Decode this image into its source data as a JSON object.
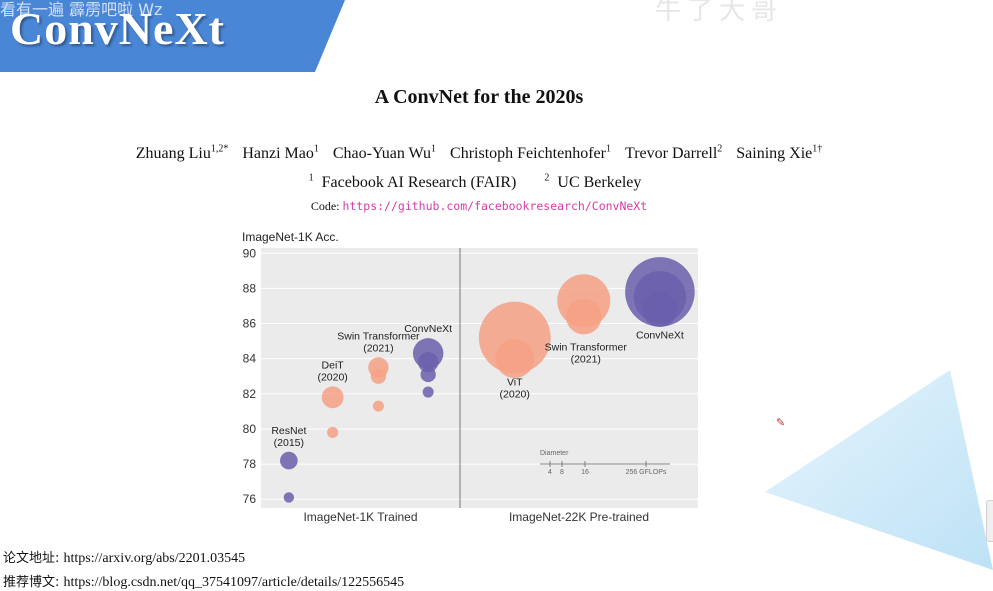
{
  "banner": {
    "title": "ConvNeXt",
    "overlay_text": "看有一遍 霹雳吧啦 Wz"
  },
  "watermark": "牛了大哥",
  "paper": {
    "title": "A ConvNet for the 2020s",
    "authors": [
      {
        "name": "Zhuang Liu",
        "sup": "1,2*"
      },
      {
        "name": "Hanzi Mao",
        "sup": "1"
      },
      {
        "name": "Chao-Yuan Wu",
        "sup": "1"
      },
      {
        "name": "Christoph Feichtenhofer",
        "sup": "1"
      },
      {
        "name": "Trevor Darrell",
        "sup": "2"
      },
      {
        "name": "Saining Xie",
        "sup": "1†"
      }
    ],
    "affiliations": [
      {
        "sup": "1",
        "name": "Facebook AI Research (FAIR)"
      },
      {
        "sup": "2",
        "name": "UC Berkeley"
      }
    ],
    "code_label": "Code:",
    "code_url": "https://github.com/facebookresearch/ConvNeXt"
  },
  "chart_data": {
    "type": "scatter",
    "ylabel": "ImageNet-1K Acc.",
    "ylim": [
      75.5,
      90.3
    ],
    "yticks": [
      76,
      78,
      80,
      82,
      84,
      86,
      88,
      90
    ],
    "panels": [
      {
        "label": "ImageNet-1K Trained"
      },
      {
        "label": "ImageNet-22K Pre-trained"
      }
    ],
    "colors": {
      "convnet": "#6a5fab",
      "transformer": "#f6a085"
    },
    "groups": [
      {
        "panel": 0,
        "name": "ResNet (2015)",
        "label_lines": [
          "ResNet",
          "(2015)"
        ],
        "color": "convnet",
        "points": [
          {
            "x": 0.14,
            "y": 76.1,
            "gflops": 4
          },
          {
            "x": 0.14,
            "y": 78.2,
            "gflops": 11.5
          }
        ]
      },
      {
        "panel": 0,
        "name": "DeiT (2020)",
        "label_lines": [
          "DeiT",
          "(2020)"
        ],
        "color": "transformer",
        "points": [
          {
            "x": 0.36,
            "y": 79.8,
            "gflops": 4.6
          },
          {
            "x": 0.36,
            "y": 81.8,
            "gflops": 17.6
          }
        ]
      },
      {
        "panel": 0,
        "name": "Swin Transformer (2021)",
        "label_lines": [
          "Swin Transformer",
          "(2021)"
        ],
        "color": "transformer",
        "points": [
          {
            "x": 0.59,
            "y": 81.3,
            "gflops": 4.5
          },
          {
            "x": 0.59,
            "y": 83.0,
            "gflops": 8.7
          },
          {
            "x": 0.59,
            "y": 83.5,
            "gflops": 15.4
          }
        ]
      },
      {
        "panel": 0,
        "name": "ConvNeXt",
        "label_lines": [
          "ConvNeXt"
        ],
        "color": "convnet",
        "points": [
          {
            "x": 0.84,
            "y": 82.1,
            "gflops": 4.5
          },
          {
            "x": 0.84,
            "y": 83.1,
            "gflops": 8.7
          },
          {
            "x": 0.84,
            "y": 83.8,
            "gflops": 15.4
          },
          {
            "x": 0.84,
            "y": 84.3,
            "gflops": 34.4
          }
        ]
      },
      {
        "panel": 1,
        "name": "ViT (2020)",
        "label_lines": [
          "ViT",
          "(2020)"
        ],
        "color": "transformer",
        "points": [
          {
            "x": 0.23,
            "y": 84.0,
            "gflops": 55.5
          },
          {
            "x": 0.23,
            "y": 85.2,
            "gflops": 191
          }
        ]
      },
      {
        "panel": 1,
        "name": "Swin Transformer (2021)",
        "label_lines": [
          "Swin Transformer",
          "(2021)"
        ],
        "color": "transformer",
        "points": [
          {
            "x": 0.52,
            "y": 86.4,
            "gflops": 47
          },
          {
            "x": 0.52,
            "y": 87.3,
            "gflops": 104
          }
        ]
      },
      {
        "panel": 1,
        "name": "ConvNeXt",
        "label_lines": [
          "ConvNeXt"
        ],
        "color": "convnet",
        "points": [
          {
            "x": 0.84,
            "y": 86.8,
            "gflops": 45
          },
          {
            "x": 0.84,
            "y": 87.5,
            "gflops": 101
          },
          {
            "x": 0.84,
            "y": 87.8,
            "gflops": 179
          }
        ]
      }
    ],
    "size_legend": {
      "title": "Diameter",
      "values": [
        4,
        8,
        16,
        256
      ],
      "unit_label": "256 GFLOPs"
    }
  },
  "footer": {
    "paper_label": "论文地址:",
    "paper_url": "https://arxiv.org/abs/2201.03545",
    "blog_label": "推荐博文:",
    "blog_url": "https://blog.csdn.net/qq_37541097/article/details/122556545"
  }
}
